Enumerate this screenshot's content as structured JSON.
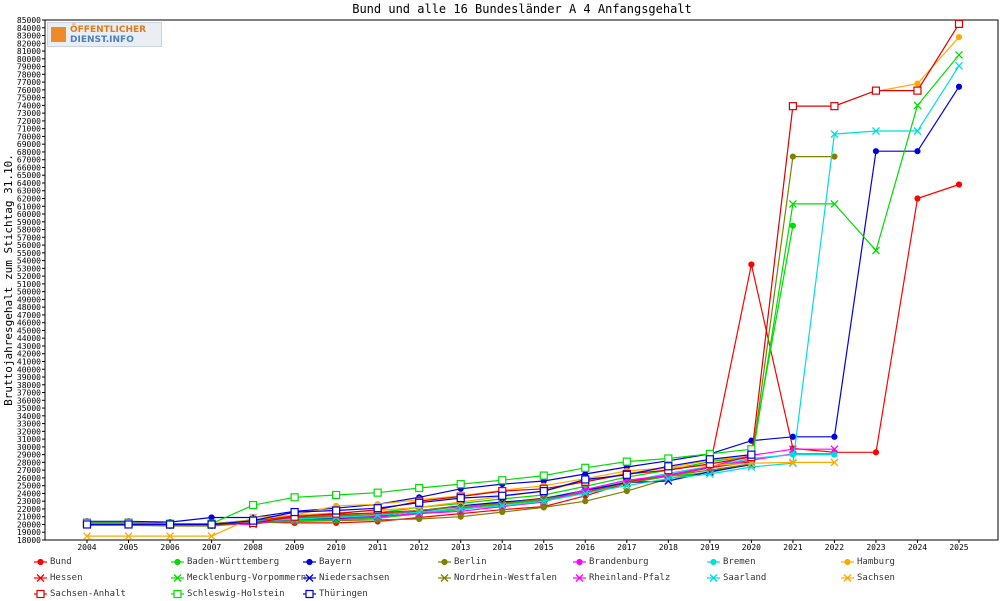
{
  "logo": {
    "line1": "ÖFFENTLICHER",
    "line2": "DIENST.INFO"
  },
  "chart_data": {
    "type": "line",
    "title": "Bund und alle 16 Bundesländer A 4 Anfangsgehalt",
    "xlabel": "",
    "ylabel": "Bruttojahresgehalt zum Stichtag 31.10.",
    "ylim": [
      18000,
      85000
    ],
    "y_tick_step": 1000,
    "grid": false,
    "legend_position": "bottom",
    "categories": [
      "2004",
      "2005",
      "2006",
      "2007",
      "2008",
      "2009",
      "2010",
      "2011",
      "2012",
      "2013",
      "2014",
      "2015",
      "2016",
      "2017",
      "2018",
      "2019",
      "2020",
      "2021",
      "2022",
      "2023",
      "2024",
      "2025"
    ],
    "series": [
      {
        "name": "Bund",
        "color": "#ff0000",
        "marker": "dot",
        "values": [
          20100,
          20100,
          19900,
          19900,
          20300,
          20200,
          20200,
          20400,
          20900,
          21400,
          21900,
          22300,
          23700,
          25300,
          26300,
          27500,
          53500,
          29800,
          29300,
          29300,
          62000,
          63800
        ]
      },
      {
        "name": "Baden-Württemberg",
        "color": "#00dd00",
        "marker": "dot",
        "values": [
          20300,
          20300,
          20100,
          20100,
          20600,
          21000,
          21200,
          21500,
          22200,
          22700,
          23300,
          23800,
          24900,
          26100,
          27000,
          28100,
          28800,
          58500,
          null,
          null,
          null,
          null
        ]
      },
      {
        "name": "Bayern",
        "color": "#0000dd",
        "marker": "dot",
        "values": [
          20400,
          20400,
          20300,
          20900,
          20900,
          21700,
          22100,
          22600,
          23500,
          24600,
          25200,
          25600,
          26500,
          27400,
          28200,
          29100,
          30800,
          31300,
          31300,
          68100,
          68100,
          76400
        ]
      },
      {
        "name": "Berlin",
        "color": "#808000",
        "marker": "dot",
        "values": [
          19900,
          19900,
          19800,
          19800,
          20200,
          20400,
          20500,
          20600,
          20700,
          21000,
          21600,
          22200,
          23000,
          24300,
          25900,
          26800,
          27800,
          67400,
          67400,
          null,
          null,
          null
        ]
      },
      {
        "name": "Brandenburg",
        "color": "#ff00ff",
        "marker": "dot",
        "values": [
          20100,
          20100,
          20000,
          20000,
          20300,
          20600,
          20700,
          20900,
          21500,
          22100,
          22700,
          23200,
          24200,
          25500,
          26400,
          27400,
          28300,
          29100,
          29100,
          null,
          null,
          null
        ]
      },
      {
        "name": "Bremen",
        "color": "#00dddd",
        "marker": "dot",
        "values": [
          20200,
          20200,
          20100,
          20100,
          20500,
          20900,
          21000,
          21300,
          21700,
          22300,
          22700,
          23400,
          24400,
          25500,
          26600,
          27500,
          28500,
          29000,
          29000,
          null,
          null,
          null
        ]
      },
      {
        "name": "Hamburg",
        "color": "#ffaa00",
        "marker": "dot",
        "values": [
          20200,
          20200,
          20100,
          20100,
          20600,
          21200,
          22400,
          22600,
          23200,
          23700,
          24400,
          25000,
          25900,
          26900,
          27300,
          28300,
          28800,
          null,
          null,
          75800,
          76800,
          82800
        ]
      },
      {
        "name": "Hessen",
        "color": "#ff0000",
        "marker": "x",
        "values": [
          20200,
          20200,
          20000,
          20000,
          20400,
          21100,
          21300,
          21500,
          21800,
          22400,
          22800,
          23400,
          24100,
          25500,
          26300,
          27300,
          28100,
          null,
          null,
          null,
          null,
          null
        ]
      },
      {
        "name": "Mecklenburg-Vorpommern",
        "color": "#00dd00",
        "marker": "x",
        "values": [
          20000,
          20000,
          19900,
          19900,
          20200,
          20500,
          20600,
          20800,
          21400,
          21900,
          22600,
          23100,
          24100,
          25300,
          26200,
          26700,
          27800,
          61300,
          61300,
          55300,
          74000,
          80500
        ]
      },
      {
        "name": "Niedersachsen",
        "color": "#0000dd",
        "marker": "x",
        "values": [
          20200,
          20200,
          20100,
          20100,
          20300,
          20700,
          20800,
          21100,
          21700,
          22400,
          22900,
          23300,
          24400,
          25400,
          25600,
          26800,
          27700,
          null,
          null,
          null,
          null,
          null
        ]
      },
      {
        "name": "Nordrhein-Westfalen",
        "color": "#808000",
        "marker": "x",
        "values": [
          20200,
          20200,
          20000,
          20000,
          20400,
          20900,
          21100,
          21300,
          21800,
          22300,
          22700,
          23300,
          24100,
          25300,
          26300,
          27000,
          27800,
          null,
          null,
          null,
          null,
          null
        ]
      },
      {
        "name": "Rheinland-Pfalz",
        "color": "#ff00ff",
        "marker": "x",
        "values": [
          20300,
          20300,
          20100,
          20100,
          20000,
          20900,
          20900,
          21000,
          21400,
          21700,
          22300,
          22900,
          24500,
          25700,
          26300,
          27400,
          28900,
          29700,
          29700,
          null,
          null,
          null
        ]
      },
      {
        "name": "Saarland",
        "color": "#00dddd",
        "marker": "x",
        "values": [
          20100,
          20100,
          20000,
          20000,
          20400,
          20700,
          20900,
          21200,
          21600,
          22000,
          22400,
          23000,
          24000,
          25000,
          25900,
          26500,
          27400,
          27900,
          70300,
          70700,
          70700,
          79100
        ]
      },
      {
        "name": "Sachsen",
        "color": "#ffaa00",
        "marker": "x",
        "values": [
          18500,
          18500,
          18500,
          18500,
          20900,
          21200,
          21500,
          21800,
          22200,
          22900,
          23600,
          24300,
          25600,
          26600,
          27300,
          27600,
          27900,
          28000,
          28000,
          null,
          null,
          null
        ]
      },
      {
        "name": "Sachsen-Anhalt",
        "color": "#dd0000",
        "marker": "square",
        "values": [
          20200,
          20200,
          20000,
          20000,
          20200,
          21000,
          21400,
          21900,
          23000,
          23600,
          24300,
          24600,
          25500,
          26500,
          27000,
          27800,
          28700,
          73900,
          73900,
          75900,
          75900,
          84500
        ]
      },
      {
        "name": "Schleswig-Holstein",
        "color": "#00dd00",
        "marker": "square",
        "values": [
          20200,
          20200,
          20100,
          20100,
          22500,
          23500,
          23800,
          24100,
          24700,
          25200,
          25700,
          26300,
          27300,
          28100,
          28500,
          29100,
          29700,
          null,
          null,
          null,
          null,
          null
        ]
      },
      {
        "name": "Thüringen",
        "color": "#0000dd",
        "marker": "square",
        "values": [
          20000,
          20000,
          20000,
          20000,
          20500,
          21600,
          21800,
          22100,
          22800,
          23400,
          23700,
          24300,
          25800,
          26400,
          27500,
          28400,
          29000,
          null,
          null,
          null,
          null,
          null
        ]
      }
    ]
  }
}
